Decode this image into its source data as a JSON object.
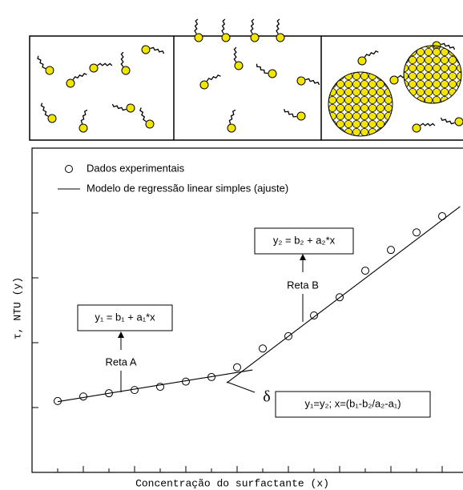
{
  "chart_data": {
    "type": "scatter-fit",
    "xlabel": "Concentração do surfactante (x)",
    "ylabel": "τ, NTU  (y)",
    "xlim": [
      0,
      16.8
    ],
    "ylim": [
      0,
      5
    ],
    "xticks": [
      1,
      2,
      3,
      4,
      5,
      6,
      7,
      8,
      9,
      10,
      11,
      12,
      13,
      14,
      15,
      16
    ],
    "yticks": [
      1,
      2,
      3,
      4
    ],
    "series": [
      {
        "name": "Dados experimentais",
        "color": "#000000",
        "marker": "open-circle",
        "x": [
          1,
          2,
          3,
          4,
          5,
          6,
          7,
          8,
          9,
          10,
          11,
          12,
          13,
          14,
          15,
          16
        ],
        "values": [
          1.1,
          1.17,
          1.22,
          1.27,
          1.32,
          1.4,
          1.47,
          1.62,
          1.91,
          2.1,
          2.42,
          2.7,
          3.11,
          3.43,
          3.7,
          3.95
        ]
      },
      {
        "name": "Modelo de regressão linear simples (ajuste)",
        "color": "#000000",
        "marker": "line",
        "x": [
          1,
          8.6,
          null,
          7.6,
          16.7
        ],
        "values": [
          1.09,
          1.58,
          null,
          1.38,
          4.1
        ]
      }
    ],
    "annotations": [
      "y₁ = b₁ + a₁*x",
      "Reta A",
      "y₂ = b₂ + a₂*x",
      "Reta B",
      "δ",
      "y₁=y₂; x=(b₁-b₂/a₂-a₁)"
    ]
  }
}
